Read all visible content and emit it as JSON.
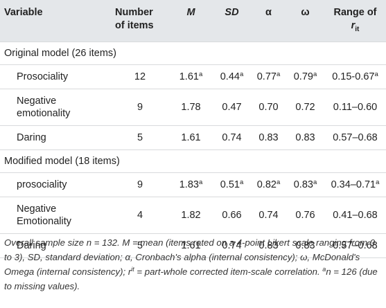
{
  "header": {
    "variable": "Variable",
    "num_items_line1": "Number",
    "num_items_line2": "of items",
    "m": "M",
    "sd": "SD",
    "alpha": "α",
    "omega": "ω",
    "range_prefix": "Range of ",
    "range_r": "r",
    "range_sub": "it"
  },
  "sections": [
    {
      "title": "Original model (26 items)",
      "rows": [
        {
          "variable": "Prosociality",
          "n": "12",
          "m": "1.61",
          "m_sup": "a",
          "sd": "0.44",
          "sd_sup": "a",
          "alpha": "0.77",
          "alpha_sup": "a",
          "omega": "0.79",
          "omega_sup": "a",
          "range": "0.15-0.67",
          "range_sup": "a"
        },
        {
          "variable": "Negative emotionality",
          "n": "9",
          "m": "1.78",
          "m_sup": "",
          "sd": "0.47",
          "sd_sup": "",
          "alpha": "0.70",
          "alpha_sup": "",
          "omega": "0.72",
          "omega_sup": "",
          "range": "0.11–0.60",
          "range_sup": ""
        },
        {
          "variable": "Daring",
          "n": "5",
          "m": "1.61",
          "m_sup": "",
          "sd": "0.74",
          "sd_sup": "",
          "alpha": "0.83",
          "alpha_sup": "",
          "omega": "0.83",
          "omega_sup": "",
          "range": "0.57–0.68",
          "range_sup": ""
        }
      ]
    },
    {
      "title": "Modified model (18 items)",
      "rows": [
        {
          "variable": "prosociality",
          "n": "9",
          "m": "1.83",
          "m_sup": "a",
          "sd": "0.51",
          "sd_sup": "a",
          "alpha": "0.82",
          "alpha_sup": "a",
          "omega": "0.83",
          "omega_sup": "a",
          "range": "0.34–0.71",
          "range_sup": "a"
        },
        {
          "variable": "Negative Emotionality",
          "n": "4",
          "m": "1.82",
          "m_sup": "",
          "sd": "0.66",
          "sd_sup": "",
          "alpha": "0.74",
          "alpha_sup": "",
          "omega": "0.76",
          "omega_sup": "",
          "range": "0.41–0.68",
          "range_sup": ""
        },
        {
          "variable": "Daring",
          "n": "5",
          "m": "1.61",
          "m_sup": "",
          "sd": "0.74",
          "sd_sup": "",
          "alpha": "0.83",
          "alpha_sup": "",
          "omega": "0.83",
          "omega_sup": "",
          "range": "0.57–0.68",
          "range_sup": ""
        }
      ]
    }
  ],
  "note": {
    "part1": "Overall sample size n = 132. M = mean (items rated on a 4-point Likert scale ranging from 0 to 3), SD, standard deviation; α, Cronbach's alpha (internal consistency); ω, McDonald's Omega (internal consistency); r",
    "rit_sup": "it",
    "part2": " = part-whole corrected item-scale correlation. ",
    "a_sup": "a",
    "part3": "n = 126 (due to missing values)."
  }
}
